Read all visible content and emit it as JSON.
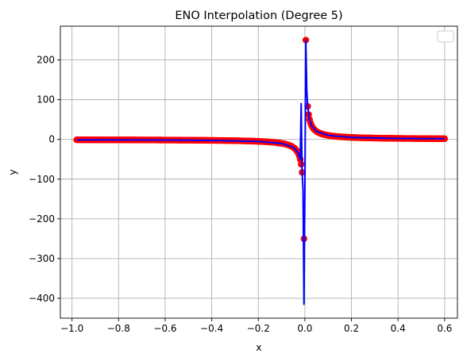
{
  "chart_data": {
    "type": "scatter",
    "title": "ENO Interpolation (Degree 5)",
    "xlabel": "x",
    "ylabel": "y",
    "xlim": [
      -1.05,
      0.655
    ],
    "ylim": [
      -450,
      285
    ],
    "xticks": [
      -1.0,
      -0.8,
      -0.6,
      -0.4,
      -0.2,
      0.0,
      0.2,
      0.4,
      0.6
    ],
    "xtick_labels": [
      "−1.0",
      "−0.8",
      "−0.6",
      "−0.4",
      "−0.2",
      "0.0",
      "0.2",
      "0.4",
      "0.6"
    ],
    "yticks": [
      -400,
      -300,
      -200,
      -100,
      0,
      100,
      200
    ],
    "ytick_labels": [
      "−400",
      "−300",
      "−200",
      "−100",
      "0",
      "100",
      "200"
    ],
    "grid": true,
    "legend": "top-right, empty",
    "series": [
      {
        "kind": "scatter",
        "color": "#ff0000",
        "function": "y = 1/x",
        "x_range": [
          -0.98,
          0.6
        ],
        "highlighted_points": [
          {
            "x": -0.004,
            "y": -250
          },
          {
            "x": 0.004,
            "y": 250
          },
          {
            "x": -0.012,
            "y": -83
          },
          {
            "x": 0.012,
            "y": 83
          },
          {
            "x": -0.02,
            "y": -50
          },
          {
            "x": 0.02,
            "y": 50
          }
        ]
      },
      {
        "kind": "line",
        "color": "#0000ff",
        "function": "y = 1/x (ENO degree 5 interpolant with overshoot near 0)",
        "points": [
          [
            -0.98,
            -1.02
          ],
          [
            -0.6,
            -1.67
          ],
          [
            -0.4,
            -2.5
          ],
          [
            -0.2,
            -5
          ],
          [
            -0.1,
            -10
          ],
          [
            -0.05,
            -20
          ],
          [
            -0.03,
            -33
          ],
          [
            -0.024,
            -42
          ],
          [
            -0.02,
            -50
          ],
          [
            -0.016,
            90
          ],
          [
            -0.012,
            -83
          ],
          [
            -0.008,
            -125
          ],
          [
            -0.004,
            -415
          ],
          [
            0.0,
            -120
          ],
          [
            0.004,
            250
          ],
          [
            0.008,
            125
          ],
          [
            0.012,
            83
          ],
          [
            0.02,
            50
          ],
          [
            0.03,
            33
          ],
          [
            0.05,
            20
          ],
          [
            0.1,
            10
          ],
          [
            0.2,
            5
          ],
          [
            0.4,
            2.5
          ],
          [
            0.6,
            1.67
          ]
        ]
      }
    ]
  }
}
